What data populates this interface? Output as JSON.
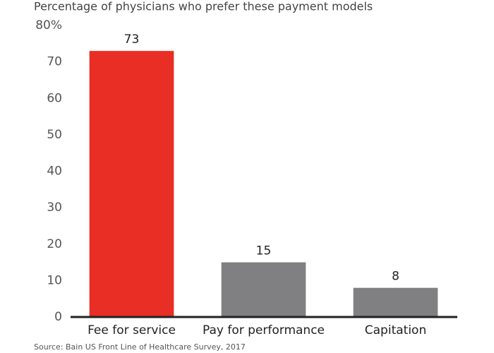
{
  "chart_data": {
    "type": "bar",
    "title": "Percentage of physicians who prefer these payment models",
    "categories": [
      "Fee for service",
      "Pay for performance",
      "Capitation"
    ],
    "values": [
      73,
      15,
      8
    ],
    "colors": [
      "#e82e25",
      "#808083",
      "#808083"
    ],
    "ylim": [
      0,
      80
    ],
    "yticks": [
      0,
      10,
      20,
      30,
      40,
      50,
      60,
      70,
      {
        "value": 80,
        "label": "80%"
      }
    ],
    "grid": false,
    "source": "Source: Bain US Front Line of Healthcare Survey, 2017"
  }
}
